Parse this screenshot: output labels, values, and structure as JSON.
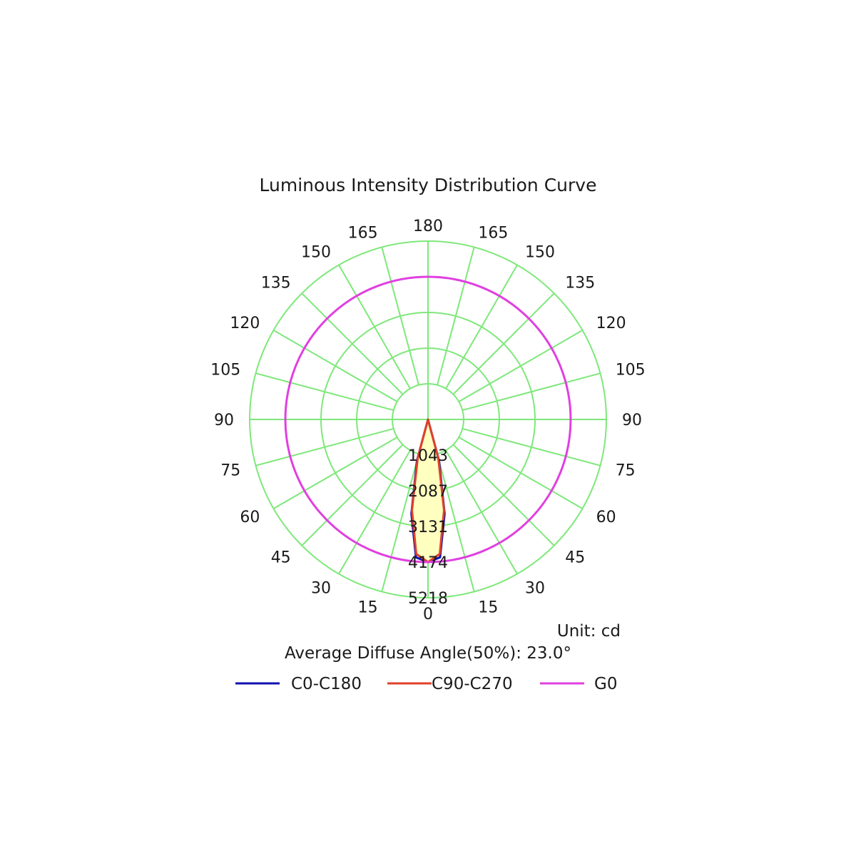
{
  "chart_data": {
    "type": "polar",
    "title": "Luminous Intensity Distribution Curve",
    "unit_label": "Unit: cd",
    "info_label": "Average Diffuse Angle(50%): 23.0°",
    "max_intensity": 5218,
    "ring_values": [
      1043,
      2087,
      3131,
      4174,
      5218
    ],
    "ring_labels": [
      "1043",
      "2087",
      "3131",
      "4174",
      "5218"
    ],
    "angle_step": 15,
    "angle_labels_left": [
      "0",
      "15",
      "30",
      "45",
      "60",
      "75",
      "90",
      "105",
      "120",
      "135",
      "150",
      "165",
      "180"
    ],
    "angle_labels_right": [
      "15",
      "30",
      "45",
      "60",
      "75",
      "90",
      "105",
      "120",
      "135",
      "150",
      "165"
    ],
    "grid_color": "#7ee87a",
    "fill_color": "#ffffc0",
    "series": [
      {
        "name": "C0-C180",
        "color": "#1010b0",
        "angles": [
          -180,
          -90,
          -20,
          -15,
          -10,
          -5,
          0,
          5,
          10,
          15,
          20,
          90,
          180
        ],
        "values": [
          0,
          0,
          0,
          1250,
          2800,
          4050,
          4174,
          4050,
          2800,
          1250,
          0,
          0,
          0
        ]
      },
      {
        "name": "C90-C270",
        "color": "#e0402a",
        "angles": [
          -180,
          -90,
          -20,
          -15,
          -10,
          -5,
          0,
          5,
          10,
          15,
          20,
          90,
          180
        ],
        "values": [
          0,
          0,
          0,
          1150,
          2700,
          3950,
          4174,
          3950,
          2700,
          1150,
          0,
          0,
          0
        ]
      },
      {
        "name": "G0",
        "color": "#e040e0",
        "constant_value": 4174
      }
    ]
  }
}
